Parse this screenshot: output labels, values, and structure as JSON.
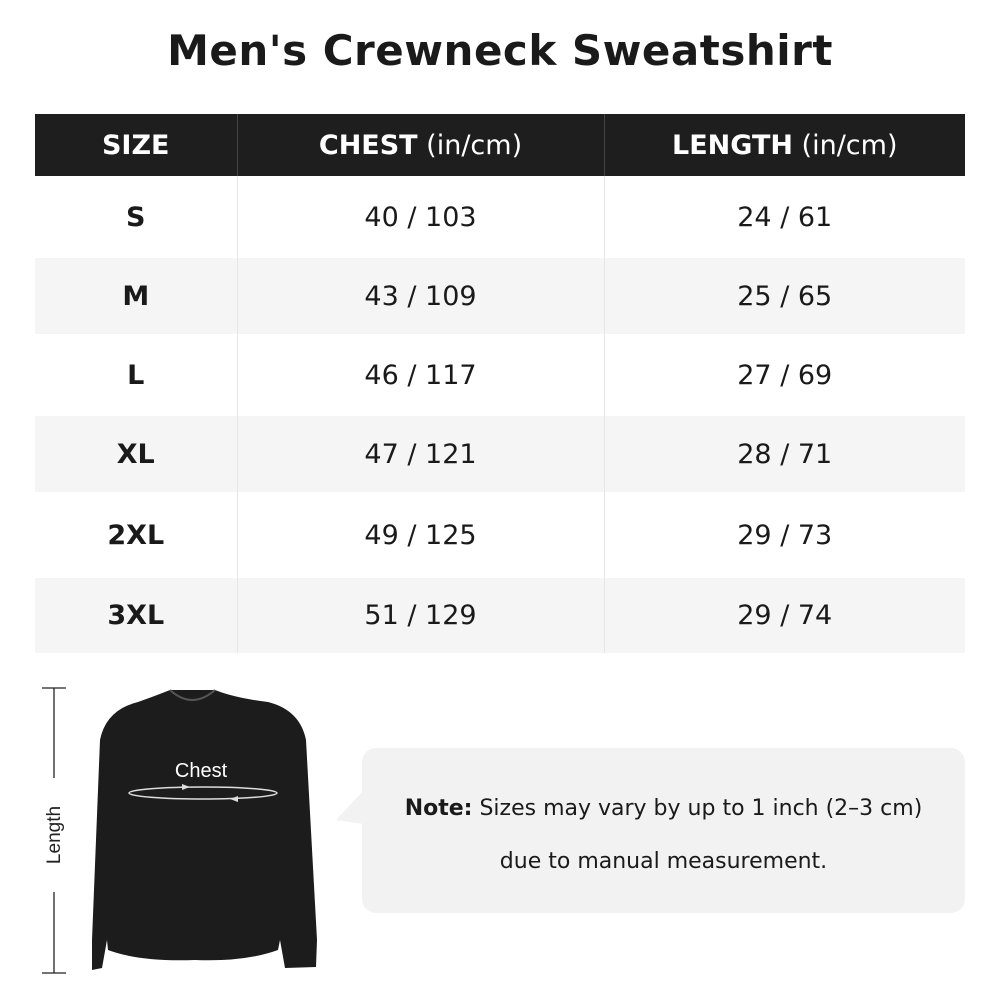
{
  "title": "Men's Crewneck Sweatshirt",
  "table": {
    "headers": [
      {
        "bold": "SIZE",
        "unit": ""
      },
      {
        "bold": "CHEST",
        "unit": " (in/cm)"
      },
      {
        "bold": "LENGTH",
        "unit": " (in/cm)"
      }
    ],
    "rows": [
      [
        "S",
        "40 / 103",
        "24 / 61"
      ],
      [
        "M",
        "43 / 109",
        "25 / 65"
      ],
      [
        "L",
        "46 / 117",
        "27 / 69"
      ],
      [
        "XL",
        "47 / 121",
        "28 / 71"
      ],
      [
        "2XL",
        "49 / 125",
        "29 / 73"
      ],
      [
        "3XL",
        "51 / 129",
        "29 / 74"
      ]
    ]
  },
  "diagram": {
    "length_label": "Length",
    "chest_label": "Chest",
    "garment_color": "#1c1c1c"
  },
  "note": {
    "label": "Note:",
    "line1": " Sizes may vary by up to 1 inch (2–3 cm)",
    "line2": "due to manual measurement."
  }
}
